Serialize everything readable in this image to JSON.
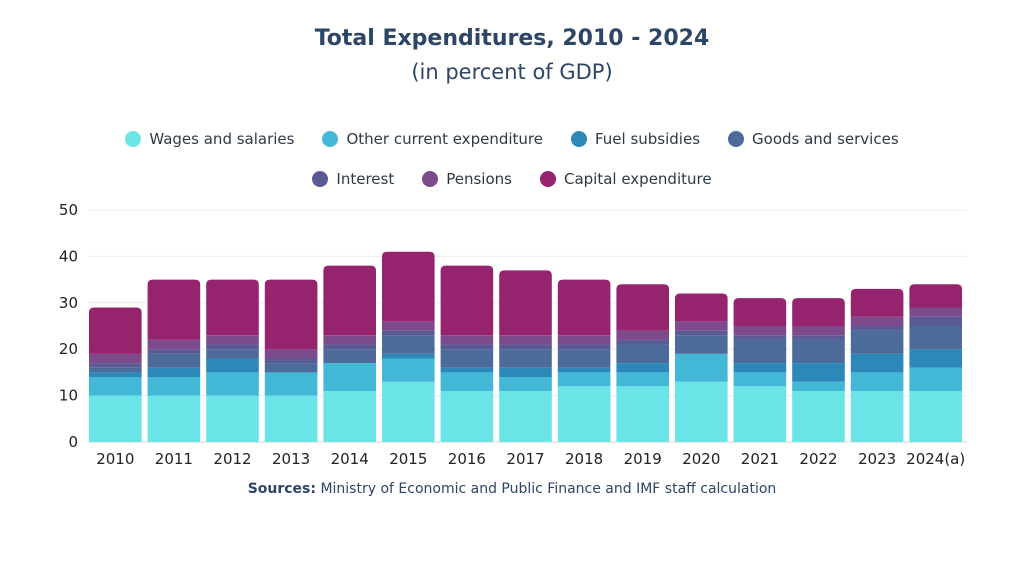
{
  "chart_data": {
    "type": "bar",
    "stacked": true,
    "title": "Total Expenditures, 2010 - 2024",
    "subtitle": "(in percent of GDP)",
    "xlabel": "",
    "ylabel": "",
    "ylim": [
      0,
      50
    ],
    "yticks": [
      0,
      10,
      20,
      30,
      40,
      50
    ],
    "grid": true,
    "legend_position": "top-center",
    "categories": [
      "2010",
      "2011",
      "2012",
      "2013",
      "2014",
      "2015",
      "2016",
      "2017",
      "2018",
      "2019",
      "2020",
      "2021",
      "2022",
      "2023",
      "2024(a)"
    ],
    "series": [
      {
        "name": "Wages and salaries",
        "color": "#6ae4e6",
        "values": [
          10,
          10,
          10,
          10,
          11,
          13,
          11,
          11,
          12,
          12,
          13,
          12,
          11,
          11,
          11
        ]
      },
      {
        "name": "Other current expenditure",
        "color": "#42b8d6",
        "values": [
          4,
          4,
          5,
          5,
          6,
          5,
          4,
          3,
          3,
          3,
          6,
          3,
          2,
          4,
          5
        ]
      },
      {
        "name": "Fuel subsidies",
        "color": "#2c88b8",
        "values": [
          1,
          2,
          3,
          0,
          0,
          1,
          1,
          2,
          1,
          2,
          0,
          2,
          4,
          4,
          4
        ]
      },
      {
        "name": "Goods and services",
        "color": "#4c6b98",
        "values": [
          1,
          3,
          2,
          2,
          3,
          4,
          4,
          4,
          4,
          4,
          4,
          5,
          5,
          5,
          5
        ]
      },
      {
        "name": "Interest",
        "color": "#5a5a94",
        "values": [
          1,
          1,
          1,
          1,
          1,
          1,
          1,
          1,
          1,
          1,
          1,
          1,
          1,
          1,
          2
        ]
      },
      {
        "name": "Pensions",
        "color": "#7d4a8c",
        "values": [
          2,
          2,
          2,
          2,
          2,
          2,
          2,
          2,
          2,
          2,
          2,
          2,
          2,
          2,
          2
        ]
      },
      {
        "name": "Capital expenditure",
        "color": "#95236e",
        "values": [
          10,
          13,
          12,
          15,
          15,
          15,
          15,
          14,
          12,
          10,
          6,
          6,
          6,
          6,
          5
        ]
      }
    ],
    "totals": [
      29,
      35,
      35,
      35,
      38,
      41,
      38,
      37,
      35,
      34,
      32,
      31,
      31,
      33,
      34
    ]
  },
  "source": {
    "label": "Sources:",
    "text": "Ministry of Economic and Public Finance and IMF staff calculation"
  }
}
